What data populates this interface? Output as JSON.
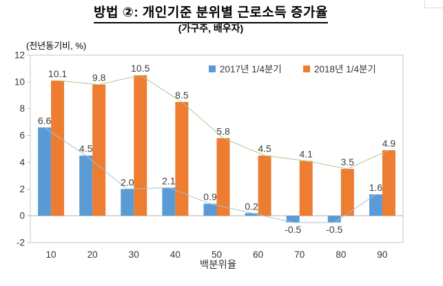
{
  "chart_data": {
    "type": "bar",
    "title": "방법 ②: 개인기준 분위별 근로소득 증가율",
    "subtitle": "(가구주, 배우자)",
    "unit_label": "(전년동기비, %)",
    "xlabel": "백분위율",
    "categories": [
      "10",
      "20",
      "30",
      "40",
      "50",
      "60",
      "70",
      "80",
      "90"
    ],
    "series": [
      {
        "name": "2017년 1/4분기",
        "color": "#5B9BD5",
        "connector_color": "#A9BFD6",
        "values": [
          6.6,
          4.5,
          2.0,
          2.1,
          0.9,
          0.2,
          -0.5,
          -0.5,
          1.6
        ]
      },
      {
        "name": "2018년 1/4분기",
        "color": "#ED7D31",
        "connector_color": "#A9C98F",
        "values": [
          10.1,
          9.8,
          10.5,
          8.5,
          5.8,
          4.5,
          4.1,
          3.5,
          4.9
        ]
      }
    ],
    "ylim": [
      -2,
      12
    ],
    "yticks": [
      12,
      10,
      8,
      6,
      4,
      2,
      0,
      -2
    ],
    "grid": false,
    "data_labels": true,
    "legend_position": "top-right-inside"
  },
  "colors": {
    "plot_border": "#C4C4C4",
    "zero_line": "#B0B0B0",
    "axis_text": "#333333",
    "data_label_text": "#3d3d3d"
  }
}
